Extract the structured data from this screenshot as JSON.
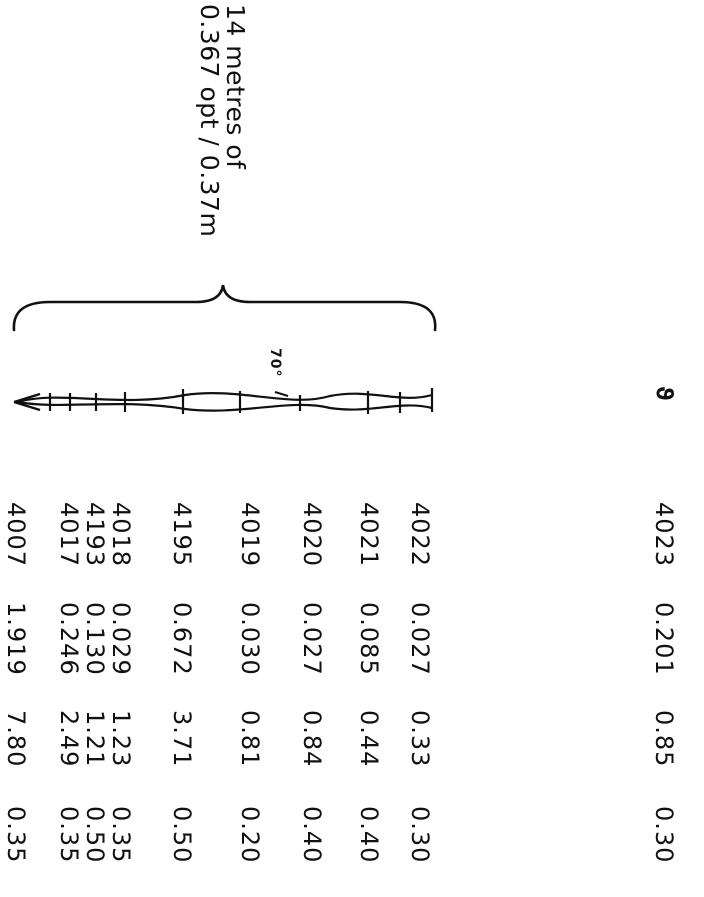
{
  "header": {
    "line1": "14 metres of",
    "line2": "0.367 opt / 0.37m"
  },
  "sketch": {
    "angle_label": "70°"
  },
  "symbol": "ϑ",
  "rows": [
    {
      "code": "4023",
      "a": "0.201",
      "b": "0.85",
      "c": "0.30"
    },
    {
      "code": "4022",
      "a": "0.027",
      "b": "0.33",
      "c": "0.30"
    },
    {
      "code": "4021",
      "a": "0.085",
      "b": "0.44",
      "c": "0.40"
    },
    {
      "code": "4020",
      "a": "0.027",
      "b": "0.84",
      "c": "0.40"
    },
    {
      "code": "4019",
      "a": "0.030",
      "b": "0.81",
      "c": "0.20"
    },
    {
      "code": "4195",
      "a": "0.672",
      "b": "3.71",
      "c": "0.50"
    },
    {
      "code": "4018",
      "a": "0.029",
      "b": "1.23",
      "c": "0.35"
    },
    {
      "code": "4193",
      "a": "0.130",
      "b": "1.21",
      "c": "0.50"
    },
    {
      "code": "4017",
      "a": "0.246",
      "b": "2.49",
      "c": "0.35"
    },
    {
      "code": "4007",
      "a": "1.919",
      "b": "7.80",
      "c": "0.35"
    }
  ]
}
